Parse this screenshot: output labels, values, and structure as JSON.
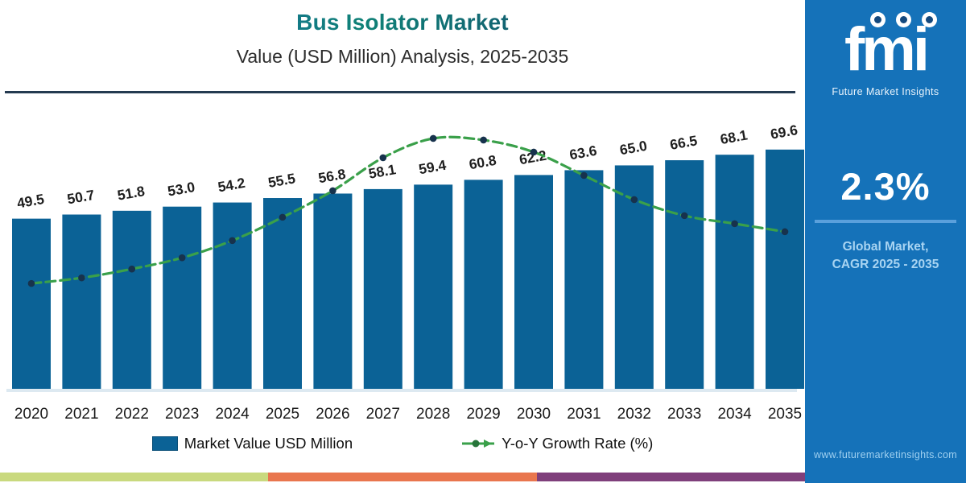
{
  "header": {
    "title": "Bus Isolator Market",
    "subtitle": "Value (USD Million) Analysis, 2025-2035"
  },
  "chart_data": {
    "type": "bar+line combo",
    "title": "Bus Isolator Market Value (USD Million) Analysis, 2025-2035",
    "categories": [
      "2020",
      "2021",
      "2022",
      "2023",
      "2024",
      "2025",
      "2026",
      "2027",
      "2028",
      "2029",
      "2030",
      "2031",
      "2032",
      "2033",
      "2034",
      "2035"
    ],
    "series": [
      {
        "name": "Market Value USD Million",
        "type": "bar",
        "values": [
          49.5,
          50.7,
          51.8,
          53.0,
          54.2,
          55.5,
          56.8,
          58.1,
          59.4,
          60.8,
          62.2,
          63.6,
          65.0,
          66.5,
          68.1,
          69.6
        ]
      },
      {
        "name": "Y-o-Y Growth Rate (%)",
        "type": "line",
        "axis_labeled": false,
        "note": "no numeric axis shown; heights estimated as fraction of plot height, peak at 2028",
        "relative_heights": [
          0.393,
          0.414,
          0.447,
          0.489,
          0.553,
          0.64,
          0.739,
          0.862,
          0.934,
          0.928,
          0.883,
          0.796,
          0.706,
          0.646,
          0.616,
          0.586
        ]
      }
    ],
    "colors": {
      "bar": "#0b6296",
      "line": "#3aa04a",
      "marker": "#17324d"
    },
    "grid": false,
    "value_labels_shown": true,
    "legend_position": "bottom",
    "xlabel": "",
    "ylabel": ""
  },
  "sidebar": {
    "logo_text": "fmi",
    "logo_subtext": "Future Market Insights",
    "stat": "2.3%",
    "caption_line1": "Global Market,",
    "caption_line2": "CAGR 2025 - 2035",
    "website": "www.futuremarketinsights.com",
    "bg": "#1572b9"
  },
  "footer_stripe": {
    "colors": [
      "#c9d97e",
      "#e9764e",
      "#7f3f7b"
    ]
  }
}
